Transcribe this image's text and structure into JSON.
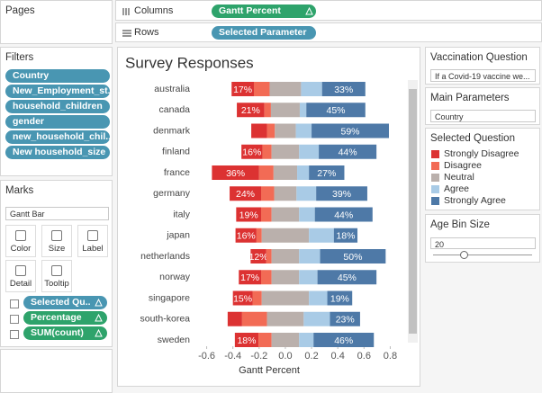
{
  "shelves": {
    "columns": {
      "label": "Columns",
      "pill": "Gantt Percent"
    },
    "rows": {
      "label": "Rows",
      "pill": "Selected Parameter"
    }
  },
  "pages": {
    "title": "Pages"
  },
  "filters": {
    "title": "Filters",
    "items": [
      "Country",
      "New_Employment_st..",
      "household_children",
      "gender",
      "new_household_chil..",
      "New household_size"
    ]
  },
  "marks": {
    "title": "Marks",
    "mark_type": "Gantt Bar",
    "buttons": [
      "Color",
      "Size",
      "Label",
      "Detail",
      "Tooltip"
    ],
    "fields": [
      "Selected Qu..",
      "Percentage",
      "SUM(count)"
    ]
  },
  "parameters": [
    {
      "title": "Vaccination Question",
      "value": "If a Covid-19 vaccine we..."
    },
    {
      "title": "Main Parameters",
      "value": "Country"
    }
  ],
  "age_bin": {
    "title": "Age Bin Size",
    "value": 20
  },
  "chart_data": {
    "type": "bar",
    "title": "Survey Responses",
    "x_label": "Gantt Percent",
    "legend_title": "Selected Question",
    "diverging": true,
    "grid": false,
    "categories": [
      "australia",
      "canada",
      "denmark",
      "finland",
      "france",
      "germany",
      "italy",
      "japan",
      "netherlands",
      "norway",
      "singapore",
      "south-korea",
      "sweden"
    ],
    "series": [
      {
        "name": "Strongly Disagree",
        "color": "#dc3232",
        "values": [
          0.17,
          0.21,
          0.12,
          0.16,
          0.36,
          0.24,
          0.19,
          0.16,
          0.12,
          0.17,
          0.15,
          0.11,
          0.18
        ],
        "value_labels": [
          "17%",
          "21%",
          null,
          "16%",
          "36%",
          "24%",
          "19%",
          "16%",
          "12%",
          "17%",
          "15%",
          null,
          "18%"
        ]
      },
      {
        "name": "Disagree",
        "color": "#f26b55",
        "values": [
          0.12,
          0.05,
          0.06,
          0.07,
          0.11,
          0.1,
          0.08,
          0.04,
          0.04,
          0.08,
          0.07,
          0.19,
          0.1
        ]
      },
      {
        "name": "Neutral",
        "color": "#bab0ac",
        "values": [
          0.24,
          0.22,
          0.16,
          0.21,
          0.18,
          0.17,
          0.21,
          0.36,
          0.21,
          0.21,
          0.36,
          0.28,
          0.21
        ]
      },
      {
        "name": "Agree",
        "color": "#a9cbe6",
        "values": [
          0.16,
          0.05,
          0.12,
          0.15,
          0.09,
          0.15,
          0.12,
          0.19,
          0.16,
          0.14,
          0.14,
          0.2,
          0.11
        ]
      },
      {
        "name": "Strongly Agree",
        "color": "#4e79a7",
        "values": [
          0.33,
          0.45,
          0.59,
          0.44,
          0.27,
          0.39,
          0.44,
          0.18,
          0.5,
          0.45,
          0.19,
          0.23,
          0.46
        ],
        "value_labels": [
          "33%",
          "45%",
          "59%",
          "44%",
          "27%",
          "39%",
          "44%",
          "18%",
          "50%",
          "45%",
          "19%",
          "23%",
          "46%"
        ]
      }
    ],
    "xlim": [
      -0.7,
      0.9
    ],
    "xticks": [
      -0.6,
      -0.4,
      -0.2,
      {
        "value": 0,
        "label": "0.0"
      },
      0.2,
      0.4,
      0.6,
      0.8
    ]
  }
}
